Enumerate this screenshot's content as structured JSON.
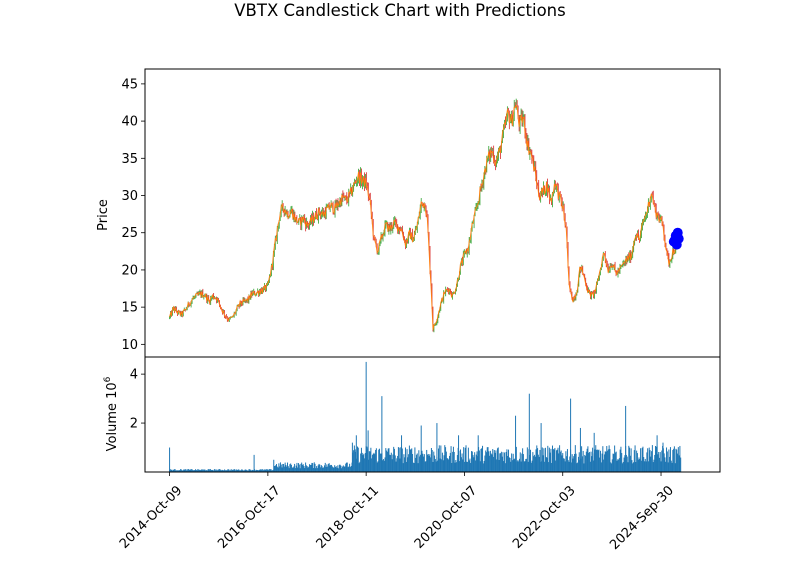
{
  "chart_data": {
    "type": "candlestick",
    "title": "VBTX Candlestick Chart with Predictions",
    "price_panel": {
      "ylabel": "Price",
      "ylim": [
        8.3,
        47.0
      ],
      "yticks": [
        10,
        15,
        20,
        25,
        30,
        35,
        40,
        45
      ],
      "up_color": "#2ca02c",
      "down_color": "#d62728",
      "line_color": "#ff7f0e",
      "prediction_color": "#0000ff",
      "series": [
        {
          "t": 0.0,
          "v": 13.6
        },
        {
          "t": 0.02,
          "v": 14.8
        },
        {
          "t": 0.04,
          "v": 14.3
        },
        {
          "t": 0.06,
          "v": 14.0
        },
        {
          "t": 0.08,
          "v": 14.6
        },
        {
          "t": 0.1,
          "v": 15.5
        },
        {
          "t": 0.12,
          "v": 16.2
        },
        {
          "t": 0.14,
          "v": 16.5
        },
        {
          "t": 0.16,
          "v": 16.8
        },
        {
          "t": 0.18,
          "v": 16.6
        },
        {
          "t": 0.2,
          "v": 15.8
        },
        {
          "t": 0.22,
          "v": 16.5
        },
        {
          "t": 0.24,
          "v": 16.2
        },
        {
          "t": 0.26,
          "v": 15.0
        },
        {
          "t": 0.28,
          "v": 14.0
        },
        {
          "t": 0.3,
          "v": 13.3
        },
        {
          "t": 0.32,
          "v": 13.6
        },
        {
          "t": 0.34,
          "v": 14.6
        },
        {
          "t": 0.36,
          "v": 15.5
        },
        {
          "t": 0.38,
          "v": 15.7
        },
        {
          "t": 0.4,
          "v": 16.0
        },
        {
          "t": 0.42,
          "v": 16.8
        },
        {
          "t": 0.44,
          "v": 16.9
        },
        {
          "t": 0.46,
          "v": 17.2
        },
        {
          "t": 0.48,
          "v": 17.4
        },
        {
          "t": 0.5,
          "v": 17.8
        },
        {
          "t": 0.52,
          "v": 20.5
        },
        {
          "t": 0.54,
          "v": 24.0
        },
        {
          "t": 0.56,
          "v": 27.5
        },
        {
          "t": 0.58,
          "v": 28.5
        },
        {
          "t": 0.6,
          "v": 27.5
        },
        {
          "t": 0.62,
          "v": 28.0
        },
        {
          "t": 0.64,
          "v": 26.8
        },
        {
          "t": 0.66,
          "v": 26.3
        },
        {
          "t": 0.68,
          "v": 27.0
        },
        {
          "t": 0.7,
          "v": 26.0
        },
        {
          "t": 0.72,
          "v": 26.5
        },
        {
          "t": 0.74,
          "v": 27.2
        },
        {
          "t": 0.76,
          "v": 27.8
        },
        {
          "t": 0.78,
          "v": 27.5
        },
        {
          "t": 0.8,
          "v": 28.0
        },
        {
          "t": 0.82,
          "v": 28.6
        },
        {
          "t": 0.84,
          "v": 28.2
        },
        {
          "t": 0.86,
          "v": 29.0
        },
        {
          "t": 0.88,
          "v": 29.7
        },
        {
          "t": 0.9,
          "v": 29.3
        },
        {
          "t": 0.92,
          "v": 30.2
        },
        {
          "t": 0.94,
          "v": 31.5
        },
        {
          "t": 0.96,
          "v": 32.7
        },
        {
          "t": 0.98,
          "v": 32.0
        },
        {
          "t": 1.0,
          "v": 31.7
        },
        {
          "t": 1.02,
          "v": 29.0
        },
        {
          "t": 1.04,
          "v": 24.0
        },
        {
          "t": 1.06,
          "v": 22.5
        },
        {
          "t": 1.08,
          "v": 24.5
        },
        {
          "t": 1.1,
          "v": 26.0
        },
        {
          "t": 1.12,
          "v": 25.5
        },
        {
          "t": 1.14,
          "v": 26.3
        },
        {
          "t": 1.16,
          "v": 25.8
        },
        {
          "t": 1.18,
          "v": 25.5
        },
        {
          "t": 1.2,
          "v": 23.5
        },
        {
          "t": 1.22,
          "v": 24.8
        },
        {
          "t": 1.24,
          "v": 24.2
        },
        {
          "t": 1.26,
          "v": 26.0
        },
        {
          "t": 1.28,
          "v": 28.9
        },
        {
          "t": 1.3,
          "v": 29.0
        },
        {
          "t": 1.31,
          "v": 27.0
        },
        {
          "t": 1.33,
          "v": 18.0
        },
        {
          "t": 1.34,
          "v": 12.0
        },
        {
          "t": 1.36,
          "v": 13.5
        },
        {
          "t": 1.38,
          "v": 15.5
        },
        {
          "t": 1.4,
          "v": 17.0
        },
        {
          "t": 1.42,
          "v": 17.5
        },
        {
          "t": 1.44,
          "v": 16.5
        },
        {
          "t": 1.46,
          "v": 18.0
        },
        {
          "t": 1.48,
          "v": 20.5
        },
        {
          "t": 1.5,
          "v": 22.0
        },
        {
          "t": 1.52,
          "v": 23.0
        },
        {
          "t": 1.54,
          "v": 26.0
        },
        {
          "t": 1.56,
          "v": 28.0
        },
        {
          "t": 1.58,
          "v": 30.5
        },
        {
          "t": 1.6,
          "v": 33.0
        },
        {
          "t": 1.62,
          "v": 35.0
        },
        {
          "t": 1.64,
          "v": 36.0
        },
        {
          "t": 1.66,
          "v": 34.5
        },
        {
          "t": 1.68,
          "v": 36.0
        },
        {
          "t": 1.7,
          "v": 38.5
        },
        {
          "t": 1.72,
          "v": 41.0
        },
        {
          "t": 1.74,
          "v": 40.0
        },
        {
          "t": 1.76,
          "v": 42.5
        },
        {
          "t": 1.78,
          "v": 39.5
        },
        {
          "t": 1.8,
          "v": 40.5
        },
        {
          "t": 1.82,
          "v": 37.0
        },
        {
          "t": 1.84,
          "v": 35.5
        },
        {
          "t": 1.86,
          "v": 33.0
        },
        {
          "t": 1.88,
          "v": 30.0
        },
        {
          "t": 1.9,
          "v": 30.5
        },
        {
          "t": 1.92,
          "v": 31.5
        },
        {
          "t": 1.94,
          "v": 29.0
        },
        {
          "t": 1.96,
          "v": 32.0
        },
        {
          "t": 1.98,
          "v": 30.0
        },
        {
          "t": 2.0,
          "v": 28.5
        },
        {
          "t": 2.02,
          "v": 25.0
        },
        {
          "t": 2.03,
          "v": 18.0
        },
        {
          "t": 2.05,
          "v": 16.0
        },
        {
          "t": 2.07,
          "v": 17.0
        },
        {
          "t": 2.09,
          "v": 20.5
        },
        {
          "t": 2.11,
          "v": 19.0
        },
        {
          "t": 2.13,
          "v": 17.0
        },
        {
          "t": 2.15,
          "v": 16.5
        },
        {
          "t": 2.17,
          "v": 17.5
        },
        {
          "t": 2.19,
          "v": 20.0
        },
        {
          "t": 2.21,
          "v": 22.5
        },
        {
          "t": 2.23,
          "v": 20.0
        },
        {
          "t": 2.25,
          "v": 21.0
        },
        {
          "t": 2.27,
          "v": 19.5
        },
        {
          "t": 2.29,
          "v": 20.0
        },
        {
          "t": 2.31,
          "v": 20.8
        },
        {
          "t": 2.33,
          "v": 21.5
        },
        {
          "t": 2.35,
          "v": 22.0
        },
        {
          "t": 2.37,
          "v": 25.0
        },
        {
          "t": 2.39,
          "v": 24.0
        },
        {
          "t": 2.41,
          "v": 26.5
        },
        {
          "t": 2.43,
          "v": 28.0
        },
        {
          "t": 2.45,
          "v": 30.5
        },
        {
          "t": 2.47,
          "v": 28.0
        },
        {
          "t": 2.49,
          "v": 27.0
        },
        {
          "t": 2.51,
          "v": 26.0
        },
        {
          "t": 2.53,
          "v": 22.0
        },
        {
          "t": 2.54,
          "v": 21.0
        },
        {
          "t": 2.56,
          "v": 22.5
        },
        {
          "t": 2.58,
          "v": 23.0
        },
        {
          "t": 2.59,
          "v": 23.5
        }
      ],
      "predictions": [
        {
          "t": 2.565,
          "v": 23.8
        },
        {
          "t": 2.575,
          "v": 24.6
        },
        {
          "t": 2.585,
          "v": 25.0
        },
        {
          "t": 2.59,
          "v": 24.2
        },
        {
          "t": 2.58,
          "v": 23.4
        },
        {
          "t": 2.57,
          "v": 24.0
        }
      ]
    },
    "volume_panel": {
      "ylabel": "Volume  10",
      "ylabel_exponent": "6",
      "ylim": [
        0,
        4.7
      ],
      "yticks": [
        2,
        4
      ],
      "bar_color": "#1f77b4",
      "spikes": [
        {
          "t": 0.0,
          "v": 1.0
        },
        {
          "t": 0.43,
          "v": 0.7
        },
        {
          "t": 0.53,
          "v": 0.5
        },
        {
          "t": 0.93,
          "v": 1.2
        },
        {
          "t": 0.95,
          "v": 1.5
        },
        {
          "t": 1.0,
          "v": 4.5
        },
        {
          "t": 1.01,
          "v": 1.7
        },
        {
          "t": 1.08,
          "v": 3.1
        },
        {
          "t": 1.18,
          "v": 1.5
        },
        {
          "t": 1.28,
          "v": 1.9
        },
        {
          "t": 1.36,
          "v": 2.0
        },
        {
          "t": 1.47,
          "v": 1.5
        },
        {
          "t": 1.57,
          "v": 1.5
        },
        {
          "t": 1.76,
          "v": 2.3
        },
        {
          "t": 1.83,
          "v": 3.2
        },
        {
          "t": 1.89,
          "v": 2.0
        },
        {
          "t": 2.04,
          "v": 3.0
        },
        {
          "t": 2.09,
          "v": 1.8
        },
        {
          "t": 2.16,
          "v": 1.6
        },
        {
          "t": 2.32,
          "v": 2.7
        },
        {
          "t": 2.48,
          "v": 1.5
        },
        {
          "t": 2.51,
          "v": 1.2
        }
      ]
    },
    "xaxis": {
      "range": [
        -0.125,
        2.8
      ],
      "tick_positions": [
        0,
        0.5,
        1.0,
        1.5,
        2.0,
        2.5
      ],
      "tick_labels": [
        "2014-Oct-09",
        "2016-Oct-17",
        "2018-Oct-11",
        "2020-Oct-07",
        "2022-Oct-03",
        "2024-Sep-30"
      ]
    }
  }
}
